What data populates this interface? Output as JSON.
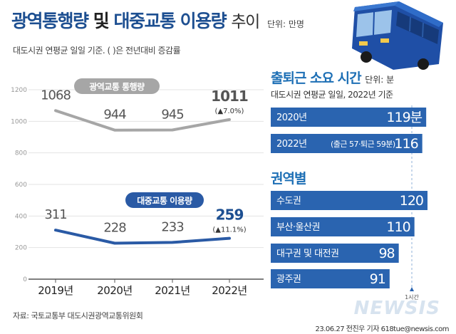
{
  "header": {
    "title_part1": "광역통행량",
    "title_part2": "및",
    "title_part3": "대중교통 이용량",
    "title_part4": "추이",
    "unit": "단위: 만명",
    "subtitle": "대도시권 연평균 일일 기준. ( )은 전년대비 증감률"
  },
  "chart_data": [
    {
      "type": "line",
      "x": [
        "2019년",
        "2020년",
        "2021년",
        "2022년"
      ],
      "ylim": [
        0,
        1200
      ],
      "yticks": [
        0,
        200,
        400,
        600,
        800,
        1000,
        1200
      ],
      "grid": true,
      "series": [
        {
          "name": "광역교통 통행량",
          "values": [
            1068,
            944,
            945,
            1011
          ],
          "labels": [
            "1068",
            "944",
            "945",
            "1011"
          ],
          "change_label": "(▲7.0%)",
          "color": "#a6a6a6"
        },
        {
          "name": "대중교통 이용량",
          "values": [
            311,
            228,
            233,
            259
          ],
          "labels": [
            "311",
            "228",
            "233",
            "259"
          ],
          "change_label": "(▲11.1%)",
          "color": "#2a5aa5"
        }
      ]
    },
    {
      "type": "bar",
      "title": "출퇴근 소요 시간",
      "unit": "단위: 분",
      "subtitle": "대도시권 연평균 일일, 2022년 기준",
      "categories": [
        "2020년",
        "2022년"
      ],
      "values": [
        119,
        116
      ],
      "value_labels": [
        "119분",
        "116"
      ],
      "annotations": [
        "",
        "(출근 57·퇴근 59분)"
      ],
      "color": "#2a64b0"
    },
    {
      "type": "bar",
      "title": "권역별",
      "categories": [
        "수도권",
        "부산·울산권",
        "대구권 및 대전권",
        "광주권"
      ],
      "values": [
        120,
        110,
        98,
        91
      ],
      "value_labels": [
        "120",
        "110",
        "98",
        "91"
      ],
      "reference_label": "1시간",
      "reference_value": 60,
      "color": "#2a64b0"
    }
  ],
  "footer": {
    "source": "자료: 국토교통부 대도시권광역교통위원회",
    "credit": "23.06.27 전진우 기자 618tue@newsis.com",
    "logo": "NEWSIS"
  },
  "colors": {
    "accent": "#1d6fb5",
    "bar": "#2a64b0",
    "up_arrow": "#d2312f"
  }
}
